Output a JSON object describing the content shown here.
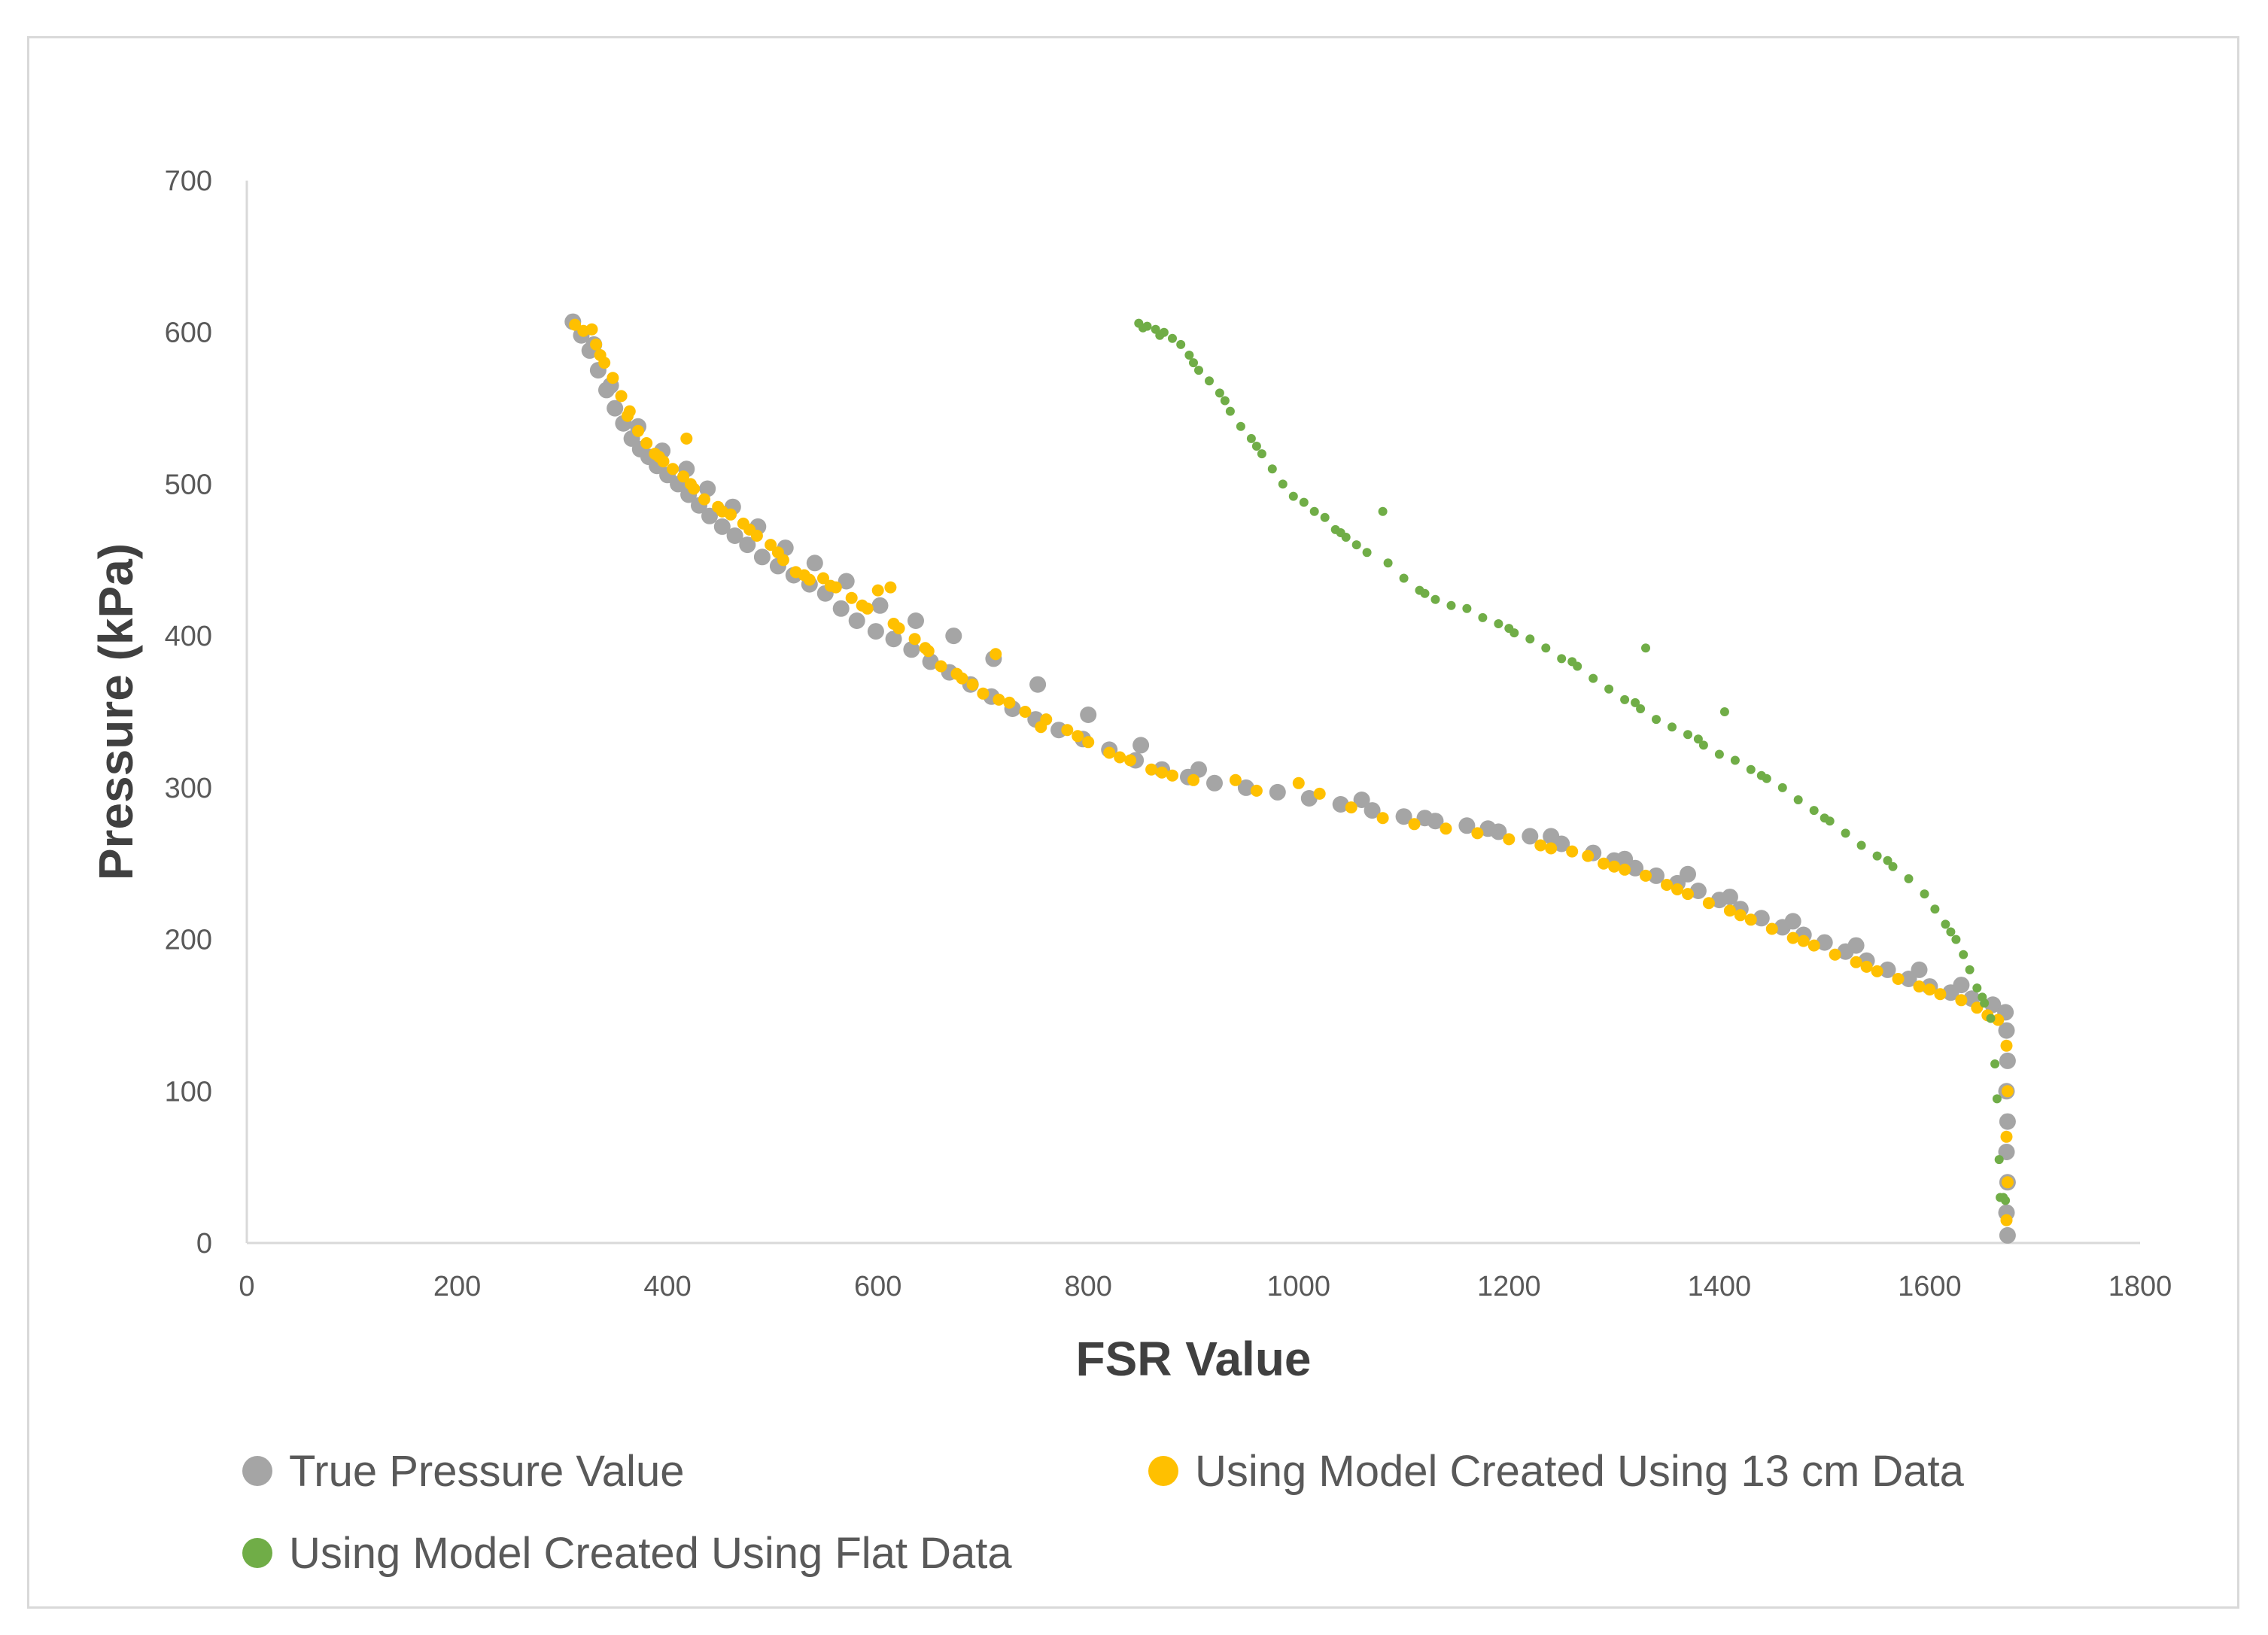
{
  "chart_data": {
    "type": "scatter",
    "title": "",
    "xlabel": "FSR Value",
    "ylabel": "Pressure (kPa)",
    "xlim": [
      0,
      1800
    ],
    "ylim": [
      0,
      700
    ],
    "xticks": [
      "0",
      "200",
      "400",
      "600",
      "800",
      "1000",
      "1200",
      "1400",
      "1600",
      "1800"
    ],
    "yticks": [
      "0",
      "100",
      "200",
      "300",
      "400",
      "500",
      "600",
      "700"
    ],
    "grid": false,
    "legend_position": "bottom",
    "series": [
      {
        "name": "True Pressure Value",
        "color": "#a5a5a5",
        "marker_size": "large",
        "points": [
          [
            310,
            607
          ],
          [
            318,
            598
          ],
          [
            326,
            588
          ],
          [
            334,
            575
          ],
          [
            342,
            562
          ],
          [
            350,
            550
          ],
          [
            358,
            540
          ],
          [
            366,
            530
          ],
          [
            374,
            523
          ],
          [
            382,
            518
          ],
          [
            390,
            512
          ],
          [
            400,
            506
          ],
          [
            410,
            500
          ],
          [
            420,
            493
          ],
          [
            430,
            486
          ],
          [
            440,
            479
          ],
          [
            452,
            472
          ],
          [
            464,
            466
          ],
          [
            476,
            460
          ],
          [
            490,
            452
          ],
          [
            505,
            446
          ],
          [
            520,
            440
          ],
          [
            535,
            434
          ],
          [
            550,
            428
          ],
          [
            565,
            418
          ],
          [
            580,
            410
          ],
          [
            598,
            403
          ],
          [
            615,
            398
          ],
          [
            632,
            391
          ],
          [
            650,
            383
          ],
          [
            668,
            376
          ],
          [
            688,
            368
          ],
          [
            708,
            360
          ],
          [
            728,
            352
          ],
          [
            750,
            345
          ],
          [
            772,
            338
          ],
          [
            795,
            332
          ],
          [
            820,
            325
          ],
          [
            845,
            318
          ],
          [
            870,
            312
          ],
          [
            895,
            307
          ],
          [
            920,
            303
          ],
          [
            950,
            300
          ],
          [
            980,
            297
          ],
          [
            1010,
            293
          ],
          [
            1040,
            289
          ],
          [
            1070,
            285
          ],
          [
            1100,
            281
          ],
          [
            1130,
            278
          ],
          [
            1160,
            275
          ],
          [
            1190,
            271
          ],
          [
            1220,
            268
          ],
          [
            1250,
            263
          ],
          [
            1280,
            257
          ],
          [
            1300,
            252
          ],
          [
            1320,
            247
          ],
          [
            1340,
            242
          ],
          [
            1360,
            237
          ],
          [
            1380,
            232
          ],
          [
            1400,
            226
          ],
          [
            1420,
            220
          ],
          [
            1440,
            214
          ],
          [
            1460,
            208
          ],
          [
            1480,
            203
          ],
          [
            1500,
            198
          ],
          [
            1520,
            192
          ],
          [
            1540,
            186
          ],
          [
            1560,
            180
          ],
          [
            1580,
            174
          ],
          [
            1600,
            169
          ],
          [
            1620,
            165
          ],
          [
            1640,
            161
          ],
          [
            1660,
            157
          ],
          [
            1672,
            152
          ],
          [
            330,
            592
          ],
          [
            346,
            565
          ],
          [
            372,
            538
          ],
          [
            395,
            522
          ],
          [
            418,
            510
          ],
          [
            438,
            497
          ],
          [
            462,
            485
          ],
          [
            486,
            472
          ],
          [
            512,
            458
          ],
          [
            540,
            448
          ],
          [
            570,
            436
          ],
          [
            602,
            420
          ],
          [
            636,
            410
          ],
          [
            672,
            400
          ],
          [
            710,
            385
          ],
          [
            752,
            368
          ],
          [
            800,
            348
          ],
          [
            850,
            328
          ],
          [
            905,
            312
          ],
          [
            1060,
            292
          ],
          [
            1120,
            280
          ],
          [
            1180,
            273
          ],
          [
            1240,
            268
          ],
          [
            1310,
            253
          ],
          [
            1370,
            243
          ],
          [
            1410,
            228
          ],
          [
            1470,
            212
          ],
          [
            1530,
            196
          ],
          [
            1590,
            180
          ],
          [
            1630,
            170
          ],
          [
            1673,
            140
          ],
          [
            1674,
            120
          ],
          [
            1673,
            100
          ],
          [
            1674,
            80
          ],
          [
            1673,
            60
          ],
          [
            1674,
            40
          ],
          [
            1673,
            20
          ],
          [
            1674,
            5
          ]
        ]
      },
      {
        "name": "Using Model Created Using 13 cm Data",
        "color": "#ffc000",
        "marker_size": "medium",
        "points": [
          [
            312,
            605
          ],
          [
            320,
            601
          ],
          [
            328,
            602
          ],
          [
            332,
            592
          ],
          [
            340,
            580
          ],
          [
            348,
            570
          ],
          [
            356,
            558
          ],
          [
            364,
            548
          ],
          [
            372,
            535
          ],
          [
            380,
            527
          ],
          [
            388,
            520
          ],
          [
            396,
            515
          ],
          [
            405,
            510
          ],
          [
            415,
            505
          ],
          [
            418,
            530
          ],
          [
            425,
            497
          ],
          [
            435,
            490
          ],
          [
            448,
            485
          ],
          [
            460,
            480
          ],
          [
            472,
            474
          ],
          [
            485,
            466
          ],
          [
            498,
            460
          ],
          [
            510,
            450
          ],
          [
            522,
            442
          ],
          [
            535,
            437
          ],
          [
            548,
            438
          ],
          [
            560,
            432
          ],
          [
            575,
            425
          ],
          [
            590,
            418
          ],
          [
            600,
            430
          ],
          [
            612,
            432
          ],
          [
            620,
            405
          ],
          [
            635,
            398
          ],
          [
            648,
            390
          ],
          [
            660,
            380
          ],
          [
            675,
            375
          ],
          [
            690,
            368
          ],
          [
            700,
            362
          ],
          [
            712,
            388
          ],
          [
            725,
            356
          ],
          [
            740,
            350
          ],
          [
            760,
            345
          ],
          [
            780,
            338
          ],
          [
            800,
            330
          ],
          [
            820,
            323
          ],
          [
            840,
            318
          ],
          [
            860,
            312
          ],
          [
            880,
            308
          ],
          [
            900,
            305
          ],
          [
            940,
            305
          ],
          [
            960,
            298
          ],
          [
            1000,
            303
          ],
          [
            1020,
            296
          ],
          [
            1050,
            287
          ],
          [
            1080,
            280
          ],
          [
            1110,
            276
          ],
          [
            1140,
            273
          ],
          [
            1170,
            270
          ],
          [
            1200,
            266
          ],
          [
            1230,
            262
          ],
          [
            1260,
            258
          ],
          [
            1275,
            255
          ],
          [
            1290,
            250
          ],
          [
            1310,
            246
          ],
          [
            1330,
            242
          ],
          [
            1350,
            236
          ],
          [
            1370,
            230
          ],
          [
            1390,
            224
          ],
          [
            1410,
            219
          ],
          [
            1430,
            213
          ],
          [
            1450,
            207
          ],
          [
            1470,
            201
          ],
          [
            1490,
            196
          ],
          [
            1510,
            190
          ],
          [
            1530,
            185
          ],
          [
            1550,
            179
          ],
          [
            1570,
            174
          ],
          [
            1590,
            169
          ],
          [
            1610,
            164
          ],
          [
            1630,
            160
          ],
          [
            1645,
            155
          ],
          [
            1655,
            150
          ],
          [
            1665,
            147
          ],
          [
            336,
            585
          ],
          [
            362,
            545
          ],
          [
            392,
            518
          ],
          [
            422,
            500
          ],
          [
            452,
            482
          ],
          [
            478,
            470
          ],
          [
            505,
            455
          ],
          [
            530,
            440
          ],
          [
            555,
            433
          ],
          [
            585,
            420
          ],
          [
            615,
            408
          ],
          [
            645,
            392
          ],
          [
            680,
            372
          ],
          [
            715,
            358
          ],
          [
            755,
            340
          ],
          [
            790,
            334
          ],
          [
            830,
            320
          ],
          [
            870,
            310
          ],
          [
            1240,
            260
          ],
          [
            1300,
            248
          ],
          [
            1360,
            233
          ],
          [
            1420,
            216
          ],
          [
            1480,
            199
          ],
          [
            1540,
            182
          ],
          [
            1600,
            167
          ],
          [
            1673,
            130
          ],
          [
            1674,
            100
          ],
          [
            1673,
            70
          ],
          [
            1674,
            40
          ],
          [
            1673,
            15
          ]
        ]
      },
      {
        "name": "Using Model Created Using Flat Data",
        "color": "#70ad47",
        "marker_size": "small",
        "points": [
          [
            848,
            606
          ],
          [
            856,
            604
          ],
          [
            864,
            602
          ],
          [
            872,
            600
          ],
          [
            880,
            596
          ],
          [
            888,
            592
          ],
          [
            896,
            585
          ],
          [
            905,
            575
          ],
          [
            915,
            568
          ],
          [
            925,
            560
          ],
          [
            935,
            548
          ],
          [
            945,
            538
          ],
          [
            955,
            530
          ],
          [
            965,
            520
          ],
          [
            975,
            510
          ],
          [
            985,
            500
          ],
          [
            995,
            492
          ],
          [
            1005,
            488
          ],
          [
            1015,
            482
          ],
          [
            1025,
            478
          ],
          [
            1035,
            470
          ],
          [
            1045,
            465
          ],
          [
            1055,
            460
          ],
          [
            1065,
            455
          ],
          [
            1080,
            482
          ],
          [
            1085,
            448
          ],
          [
            1100,
            438
          ],
          [
            1115,
            430
          ],
          [
            1130,
            424
          ],
          [
            1145,
            420
          ],
          [
            1160,
            418
          ],
          [
            1175,
            412
          ],
          [
            1190,
            408
          ],
          [
            1205,
            402
          ],
          [
            1220,
            398
          ],
          [
            1235,
            392
          ],
          [
            1250,
            385
          ],
          [
            1265,
            380
          ],
          [
            1280,
            372
          ],
          [
            1295,
            365
          ],
          [
            1310,
            358
          ],
          [
            1325,
            352
          ],
          [
            1330,
            392
          ],
          [
            1340,
            345
          ],
          [
            1355,
            340
          ],
          [
            1370,
            335
          ],
          [
            1385,
            328
          ],
          [
            1400,
            322
          ],
          [
            1405,
            350
          ],
          [
            1415,
            318
          ],
          [
            1430,
            312
          ],
          [
            1445,
            306
          ],
          [
            1460,
            300
          ],
          [
            1475,
            292
          ],
          [
            1490,
            285
          ],
          [
            1505,
            278
          ],
          [
            1520,
            270
          ],
          [
            1535,
            262
          ],
          [
            1550,
            255
          ],
          [
            1565,
            248
          ],
          [
            1580,
            240
          ],
          [
            1595,
            230
          ],
          [
            1605,
            220
          ],
          [
            1615,
            210
          ],
          [
            1625,
            200
          ],
          [
            1632,
            190
          ],
          [
            1638,
            180
          ],
          [
            1645,
            168
          ],
          [
            1652,
            158
          ],
          [
            1658,
            148
          ],
          [
            1662,
            118
          ],
          [
            1664,
            95
          ],
          [
            1666,
            55
          ],
          [
            1667,
            30
          ],
          [
            852,
            603
          ],
          [
            868,
            598
          ],
          [
            900,
            580
          ],
          [
            930,
            555
          ],
          [
            960,
            525
          ],
          [
            1040,
            468
          ],
          [
            1120,
            428
          ],
          [
            1200,
            405
          ],
          [
            1260,
            383
          ],
          [
            1320,
            356
          ],
          [
            1380,
            332
          ],
          [
            1440,
            308
          ],
          [
            1500,
            280
          ],
          [
            1560,
            252
          ],
          [
            1620,
            205
          ],
          [
            1650,
            162
          ],
          [
            1670,
            30
          ],
          [
            1672,
            28
          ]
        ]
      }
    ]
  }
}
